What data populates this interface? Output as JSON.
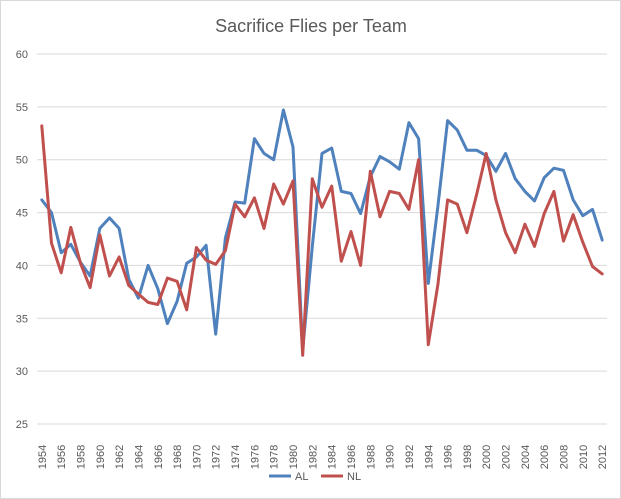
{
  "chart_data": {
    "type": "line",
    "title": "Sacrifice Flies per Team",
    "xlabel": "",
    "ylabel": "",
    "ylim": [
      25,
      60
    ],
    "y_ticks": [
      25,
      30,
      35,
      40,
      45,
      50,
      55,
      60
    ],
    "x_tick_labels": [
      "1954",
      "1956",
      "1958",
      "1960",
      "1962",
      "1964",
      "1966",
      "1968",
      "1970",
      "1972",
      "1974",
      "1976",
      "1978",
      "1980",
      "1982",
      "1984",
      "1986",
      "1988",
      "1990",
      "1992",
      "1994",
      "1996",
      "1998",
      "2000",
      "2002",
      "2004",
      "2006",
      "2008",
      "2010",
      "2012"
    ],
    "x": [
      1954,
      1955,
      1956,
      1957,
      1958,
      1959,
      1960,
      1961,
      1962,
      1963,
      1964,
      1965,
      1966,
      1967,
      1968,
      1969,
      1970,
      1971,
      1972,
      1973,
      1974,
      1975,
      1976,
      1977,
      1978,
      1979,
      1980,
      1981,
      1982,
      1983,
      1984,
      1985,
      1986,
      1987,
      1988,
      1989,
      1990,
      1991,
      1992,
      1993,
      1994,
      1995,
      1996,
      1997,
      1998,
      1999,
      2000,
      2001,
      2002,
      2003,
      2004,
      2005,
      2006,
      2007,
      2008,
      2009,
      2010,
      2011,
      2012
    ],
    "grid": true,
    "legend": "bottom",
    "series": [
      {
        "name": "AL",
        "color": "#4f81bd",
        "values": [
          46.2,
          45.0,
          41.2,
          42.0,
          40.3,
          39.0,
          43.5,
          44.5,
          43.5,
          38.7,
          36.9,
          40.0,
          37.8,
          34.5,
          36.6,
          40.2,
          40.8,
          41.9,
          33.5,
          42.6,
          46.0,
          45.9,
          52.0,
          50.6,
          50.0,
          54.7,
          51.2,
          32.0,
          41.8,
          50.6,
          51.1,
          47.0,
          46.8,
          44.9,
          48.4,
          50.3,
          49.8,
          49.1,
          53.5,
          52.0,
          38.3,
          45.6,
          53.7,
          52.8,
          50.9,
          50.9,
          50.4,
          48.9,
          50.6,
          48.2,
          47.0,
          46.1,
          48.3,
          49.2,
          49.0,
          46.2,
          44.7,
          45.3,
          42.4
        ]
      },
      {
        "name": "NL",
        "color": "#c0504d",
        "values": [
          53.2,
          42.1,
          39.3,
          43.6,
          40.2,
          37.9,
          42.9,
          39.0,
          40.8,
          38.1,
          37.3,
          36.5,
          36.3,
          38.8,
          38.5,
          35.8,
          41.7,
          40.5,
          40.1,
          41.4,
          45.8,
          44.6,
          46.4,
          43.5,
          47.7,
          45.8,
          48.0,
          31.5,
          48.2,
          45.5,
          47.5,
          40.4,
          43.2,
          40.0,
          48.9,
          44.6,
          47.0,
          46.8,
          45.3,
          50.0,
          32.5,
          38.2,
          46.2,
          45.8,
          43.1,
          46.7,
          50.6,
          46.2,
          43.1,
          41.2,
          43.9,
          41.8,
          44.9,
          47.0,
          42.3,
          44.8,
          42.2,
          39.9,
          39.2
        ]
      }
    ]
  }
}
